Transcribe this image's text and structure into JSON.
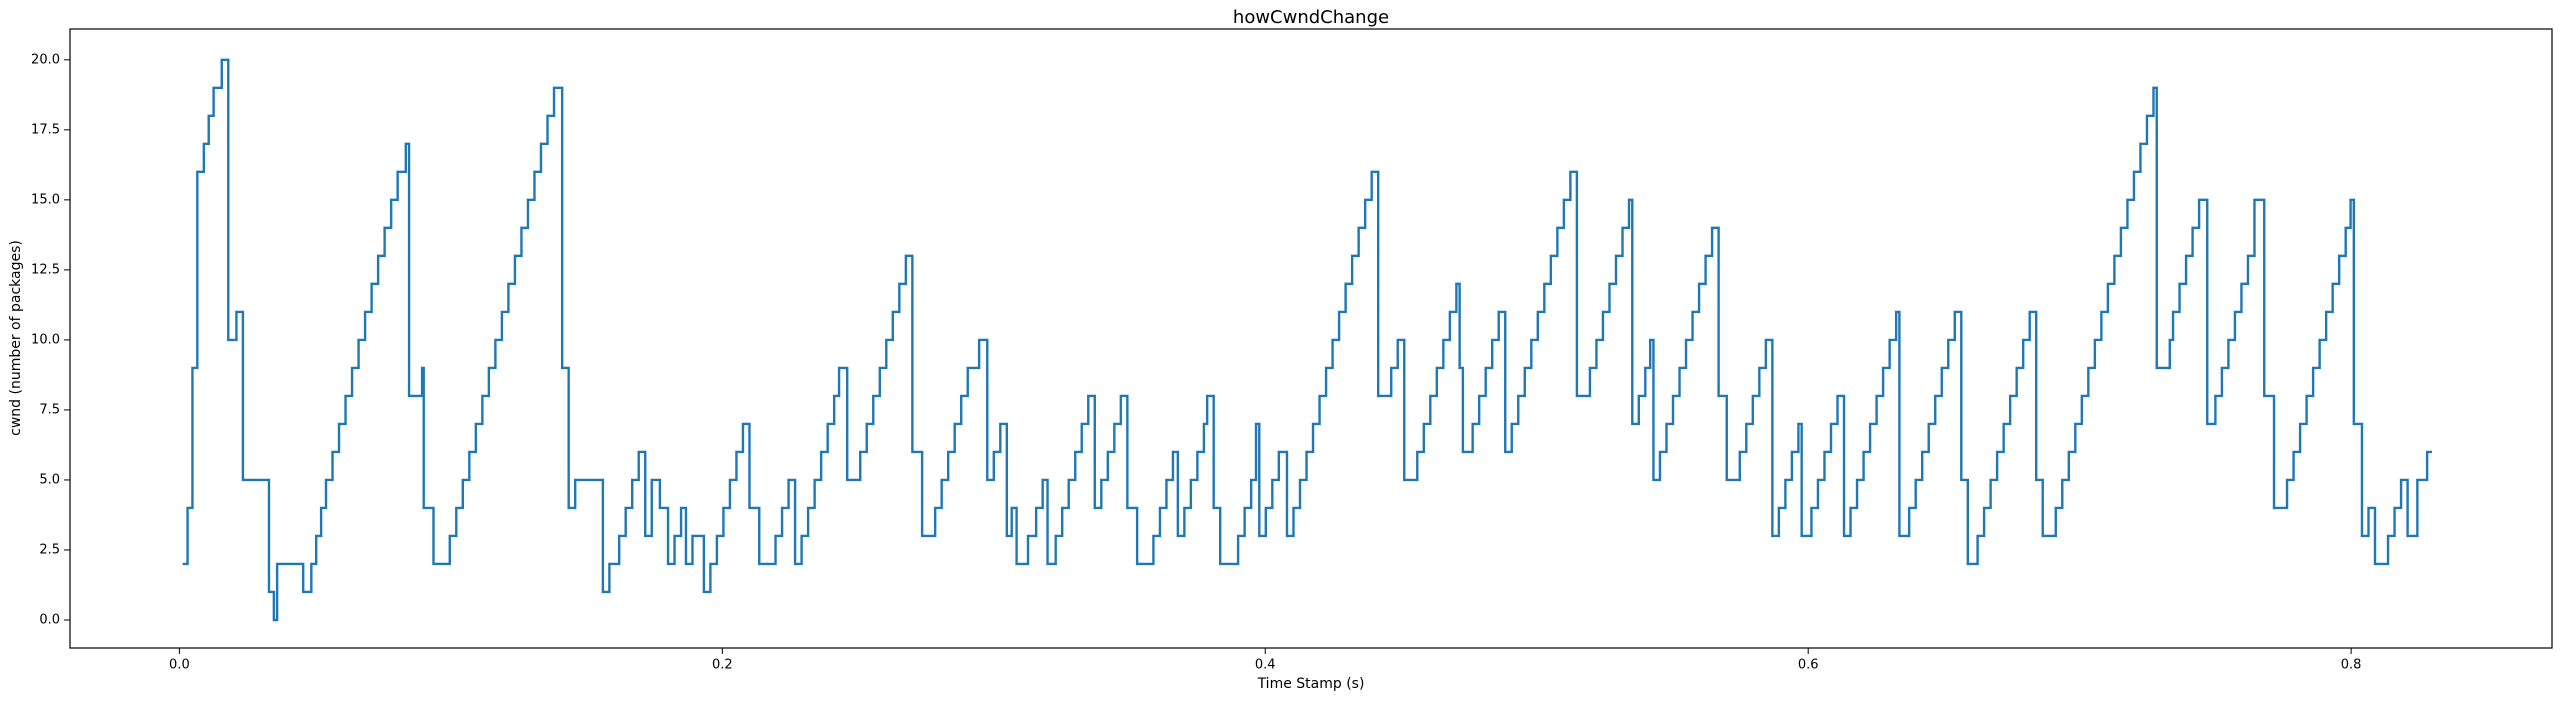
{
  "chart_data": {
    "type": "line",
    "step": "post",
    "title": "howCwndChange",
    "x_label": "Time Stamp (s)",
    "y_label": "cwnd (number of packages)",
    "xlim": [
      -0.0403,
      0.874
    ],
    "ylim": [
      -1.0,
      21.1
    ],
    "xticks": [
      {
        "value": 0,
        "label": "0.0"
      },
      0.2,
      0.4,
      0.6,
      0.8
    ],
    "yticks": [
      {
        "value": 0,
        "label": "0.0"
      },
      2.5,
      {
        "value": 5,
        "label": "5.0"
      },
      7.5,
      {
        "value": 10,
        "label": "10.0"
      },
      12.5,
      {
        "value": 15,
        "label": "15.0"
      },
      17.5,
      {
        "value": 20,
        "label": "20.0"
      }
    ],
    "grid": false,
    "x": [
      0.0012,
      0.003,
      0.0048,
      0.0066,
      0.009,
      0.0108,
      0.0126,
      0.0156,
      0.018,
      0.021,
      0.0234,
      0.033,
      0.0348,
      0.036,
      0.0456,
      0.0486,
      0.0504,
      0.0522,
      0.054,
      0.0564,
      0.0588,
      0.0612,
      0.0636,
      0.066,
      0.0684,
      0.0708,
      0.0732,
      0.0756,
      0.078,
      0.0804,
      0.0834,
      0.0846,
      0.0894,
      0.09,
      0.0936,
      0.0996,
      0.102,
      0.1044,
      0.1068,
      0.1092,
      0.1116,
      0.114,
      0.1164,
      0.1188,
      0.1212,
      0.1236,
      0.126,
      0.1284,
      0.1308,
      0.1332,
      0.1356,
      0.138,
      0.141,
      0.1434,
      0.1458,
      0.156,
      0.1584,
      0.162,
      0.1644,
      0.1668,
      0.1692,
      0.1716,
      0.174,
      0.177,
      0.18,
      0.1824,
      0.1848,
      0.1866,
      0.189,
      0.1932,
      0.1956,
      0.198,
      0.2004,
      0.2028,
      0.2052,
      0.2076,
      0.21,
      0.2136,
      0.2196,
      0.222,
      0.2244,
      0.2268,
      0.2292,
      0.2316,
      0.234,
      0.2364,
      0.2388,
      0.2412,
      0.243,
      0.246,
      0.2508,
      0.2532,
      0.2556,
      0.258,
      0.2604,
      0.2628,
      0.2652,
      0.2676,
      0.27,
      0.2736,
      0.2784,
      0.2808,
      0.2832,
      0.2856,
      0.288,
      0.2904,
      0.2946,
      0.2976,
      0.3,
      0.3024,
      0.3048,
      0.3066,
      0.3084,
      0.3126,
      0.3156,
      0.318,
      0.3198,
      0.3228,
      0.3252,
      0.3276,
      0.33,
      0.3324,
      0.3348,
      0.3372,
      0.3396,
      0.342,
      0.3444,
      0.3468,
      0.3492,
      0.3528,
      0.3588,
      0.3612,
      0.3636,
      0.366,
      0.3678,
      0.3702,
      0.3726,
      0.375,
      0.3774,
      0.3786,
      0.381,
      0.3834,
      0.39,
      0.3924,
      0.3948,
      0.3966,
      0.3978,
      0.4002,
      0.4026,
      0.405,
      0.408,
      0.4104,
      0.4128,
      0.4152,
      0.4176,
      0.42,
      0.4224,
      0.4248,
      0.4272,
      0.4296,
      0.432,
      0.4344,
      0.4368,
      0.4392,
      0.4416,
      0.4464,
      0.4488,
      0.4512,
      0.456,
      0.4584,
      0.4608,
      0.4632,
      0.4656,
      0.468,
      0.4704,
      0.4716,
      0.4728,
      0.4764,
      0.4788,
      0.4812,
      0.4836,
      0.486,
      0.4884,
      0.4908,
      0.4932,
      0.4956,
      0.498,
      0.5004,
      0.5028,
      0.5052,
      0.5076,
      0.51,
      0.5124,
      0.5148,
      0.5196,
      0.522,
      0.5244,
      0.5268,
      0.5292,
      0.5316,
      0.534,
      0.5352,
      0.5376,
      0.54,
      0.5418,
      0.543,
      0.5454,
      0.5478,
      0.5502,
      0.5526,
      0.555,
      0.5574,
      0.5598,
      0.5622,
      0.5646,
      0.567,
      0.57,
      0.5748,
      0.5772,
      0.5796,
      0.582,
      0.5844,
      0.5868,
      0.5892,
      0.5916,
      0.594,
      0.5964,
      0.5976,
      0.6012,
      0.6036,
      0.606,
      0.6084,
      0.6108,
      0.6132,
      0.6156,
      0.618,
      0.6204,
      0.6228,
      0.6252,
      0.6276,
      0.63,
      0.6324,
      0.6336,
      0.6372,
      0.6396,
      0.642,
      0.6444,
      0.6468,
      0.6492,
      0.6516,
      0.654,
      0.6564,
      0.6588,
      0.6624,
      0.6648,
      0.6672,
      0.6696,
      0.672,
      0.6744,
      0.6768,
      0.6792,
      0.6816,
      0.684,
      0.6864,
      0.6912,
      0.6936,
      0.696,
      0.6984,
      0.7008,
      0.7032,
      0.7056,
      0.708,
      0.7104,
      0.7128,
      0.7152,
      0.7176,
      0.72,
      0.7224,
      0.7248,
      0.7272,
      0.7284,
      0.7332,
      0.7344,
      0.7368,
      0.7392,
      0.7416,
      0.744,
      0.747,
      0.75,
      0.7524,
      0.7548,
      0.7572,
      0.7596,
      0.762,
      0.7644,
      0.768,
      0.7716,
      0.7764,
      0.7788,
      0.7812,
      0.7836,
      0.786,
      0.7884,
      0.7908,
      0.7932,
      0.7956,
      0.798,
      0.7998,
      0.801,
      0.804,
      0.8064,
      0.8088,
      0.8136,
      0.816,
      0.8184,
      0.8208,
      0.8244,
      0.828,
      0.8298
    ],
    "series": [
      {
        "color": "#1f77b4",
        "values": [
          2,
          4,
          9,
          16,
          17,
          18,
          19,
          20,
          10,
          11,
          5,
          1,
          0,
          2,
          1,
          2,
          3,
          4,
          5,
          6,
          7,
          8,
          9,
          10,
          11,
          12,
          13,
          14,
          15,
          16,
          17,
          8,
          9,
          4,
          2,
          3,
          4,
          5,
          6,
          7,
          8,
          9,
          10,
          11,
          12,
          13,
          14,
          15,
          16,
          17,
          18,
          19,
          9,
          4,
          5,
          1,
          2,
          3,
          4,
          5,
          6,
          3,
          5,
          4,
          2,
          3,
          4,
          2,
          3,
          1,
          2,
          3,
          4,
          5,
          6,
          7,
          4,
          2,
          3,
          4,
          5,
          2,
          3,
          4,
          5,
          6,
          7,
          8,
          9,
          5,
          6,
          7,
          8,
          9,
          10,
          11,
          12,
          13,
          6,
          3,
          4,
          5,
          6,
          7,
          8,
          9,
          10,
          5,
          6,
          7,
          3,
          4,
          2,
          3,
          4,
          5,
          2,
          3,
          4,
          5,
          6,
          7,
          8,
          4,
          5,
          6,
          7,
          8,
          4,
          2,
          3,
          4,
          5,
          6,
          3,
          4,
          5,
          6,
          7,
          8,
          4,
          2,
          3,
          4,
          5,
          7,
          3,
          4,
          5,
          6,
          3,
          4,
          5,
          6,
          7,
          8,
          9,
          10,
          11,
          12,
          13,
          14,
          15,
          16,
          8,
          9,
          10,
          5,
          6,
          7,
          8,
          9,
          10,
          11,
          12,
          9,
          6,
          7,
          8,
          9,
          10,
          11,
          6,
          7,
          8,
          9,
          10,
          11,
          12,
          13,
          14,
          15,
          16,
          8,
          9,
          10,
          11,
          12,
          13,
          14,
          15,
          7,
          8,
          9,
          10,
          5,
          6,
          7,
          8,
          9,
          10,
          11,
          12,
          13,
          14,
          8,
          5,
          6,
          7,
          8,
          9,
          10,
          3,
          4,
          5,
          6,
          7,
          3,
          4,
          5,
          6,
          7,
          8,
          3,
          4,
          5,
          6,
          7,
          8,
          9,
          10,
          11,
          3,
          4,
          5,
          6,
          7,
          8,
          9,
          10,
          11,
          5,
          2,
          3,
          4,
          5,
          6,
          7,
          8,
          9,
          10,
          11,
          5,
          3,
          4,
          5,
          6,
          7,
          8,
          9,
          10,
          11,
          12,
          13,
          14,
          15,
          16,
          17,
          18,
          19,
          9,
          10,
          11,
          12,
          13,
          14,
          15,
          7,
          8,
          9,
          10,
          11,
          12,
          13,
          15,
          8,
          4,
          5,
          6,
          7,
          8,
          9,
          10,
          11,
          12,
          13,
          14,
          15,
          7,
          3,
          4,
          2,
          3,
          4,
          5,
          3,
          5,
          6,
          6
        ]
      }
    ]
  }
}
